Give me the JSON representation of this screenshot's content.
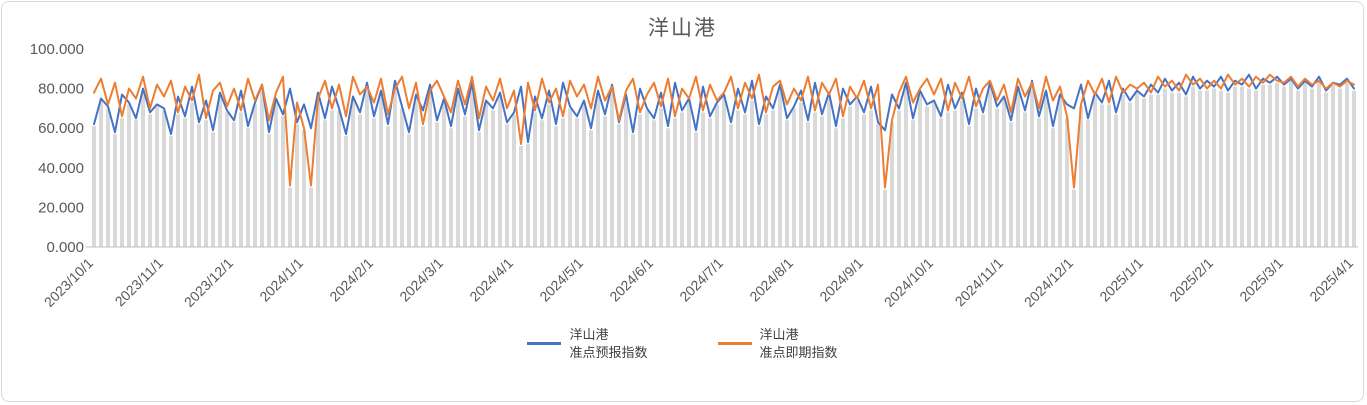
{
  "chart_data": {
    "type": "line",
    "title": "洋山港",
    "ylim": [
      0,
      100
    ],
    "y_ticks": [
      "0.000",
      "20.000",
      "40.000",
      "60.000",
      "80.000",
      "100.000"
    ],
    "x_tick_labels": [
      "2023/10/1",
      "2023/11/1",
      "2023/12/1",
      "2024/1/1",
      "2024/2/1",
      "2024/3/1",
      "2024/4/1",
      "2024/5/1",
      "2024/6/1",
      "2024/7/1",
      "2024/8/1",
      "2024/9/1",
      "2024/10/1",
      "2024/11/1",
      "2024/12/1",
      "2025/1/1",
      "2025/2/1",
      "2025/3/1",
      "2025/4/1"
    ],
    "x_tick_interval_points": 10,
    "grid": "daily vertical stripes",
    "legend_position": "bottom-center",
    "stripe_color": "#D9D9D9",
    "axis_color": "#BFBFBF",
    "text_color": "#595959",
    "title_color": "#595959",
    "series": [
      {
        "name_line1": "洋山港",
        "name_line2": "准点预报指数",
        "color": "#4472C4",
        "values": [
          62,
          75,
          71,
          58,
          77,
          73,
          65,
          80,
          68,
          72,
          70,
          57,
          76,
          66,
          81,
          63,
          74,
          59,
          78,
          69,
          64,
          79,
          61,
          73,
          82,
          58,
          75,
          67,
          80,
          63,
          72,
          60,
          78,
          65,
          81,
          70,
          57,
          76,
          68,
          83,
          66,
          79,
          62,
          84,
          71,
          58,
          77,
          69,
          82,
          64,
          75,
          61,
          80,
          67,
          83,
          59,
          74,
          70,
          78,
          63,
          68,
          81,
          53,
          76,
          65,
          79,
          62,
          83,
          71,
          66,
          74,
          60,
          79,
          67,
          82,
          63,
          77,
          58,
          80,
          70,
          65,
          78,
          61,
          83,
          69,
          75,
          59,
          81,
          66,
          73,
          77,
          63,
          80,
          68,
          84,
          62,
          76,
          70,
          82,
          65,
          71,
          79,
          64,
          83,
          67,
          78,
          61,
          80,
          72,
          76,
          68,
          81,
          63,
          59,
          77,
          70,
          83,
          65,
          79,
          72,
          74,
          66,
          82,
          70,
          78,
          62,
          80,
          68,
          83,
          71,
          76,
          64,
          81,
          69,
          84,
          66,
          79,
          61,
          77,
          72,
          70,
          82,
          65,
          78,
          73,
          84,
          68,
          80,
          74,
          79,
          76,
          82,
          78,
          85,
          79,
          83,
          77,
          86,
          80,
          84,
          81,
          86,
          79,
          84,
          82,
          87,
          80,
          85,
          83,
          86,
          82,
          85,
          80,
          84,
          81,
          86,
          79,
          83,
          82,
          85,
          80
        ]
      },
      {
        "name_line1": "洋山港",
        "name_line2": "准点即期指数",
        "color": "#ED7D31",
        "values": [
          78,
          85,
          72,
          83,
          66,
          80,
          75,
          86,
          70,
          82,
          76,
          84,
          68,
          81,
          74,
          87,
          65,
          79,
          83,
          71,
          80,
          69,
          85,
          74,
          82,
          64,
          78,
          86,
          31,
          73,
          60,
          31,
          75,
          84,
          70,
          82,
          66,
          86,
          77,
          81,
          73,
          85,
          67,
          80,
          86,
          70,
          83,
          62,
          79,
          84,
          76,
          68,
          84,
          72,
          86,
          65,
          81,
          74,
          85,
          70,
          79,
          52,
          83,
          69,
          85,
          73,
          80,
          66,
          84,
          76,
          82,
          70,
          86,
          74,
          81,
          64,
          79,
          85,
          68,
          77,
          83,
          71,
          85,
          66,
          80,
          75,
          86,
          69,
          82,
          74,
          78,
          86,
          70,
          83,
          75,
          87,
          68,
          81,
          84,
          72,
          80,
          74,
          86,
          69,
          83,
          77,
          85,
          66,
          81,
          75,
          84,
          70,
          82,
          30,
          64,
          78,
          86,
          73,
          80,
          85,
          77,
          85,
          69,
          83,
          75,
          86,
          71,
          80,
          84,
          74,
          82,
          68,
          85,
          76,
          83,
          70,
          86,
          74,
          81,
          66,
          30,
          72,
          84,
          77,
          85,
          73,
          86,
          78,
          82,
          80,
          83,
          78,
          86,
          81,
          84,
          79,
          87,
          82,
          85,
          80,
          84,
          80,
          87,
          82,
          85,
          81,
          86,
          83,
          87,
          84,
          83,
          86,
          81,
          85,
          82,
          84,
          80,
          83,
          81,
          84,
          82
        ]
      }
    ]
  }
}
